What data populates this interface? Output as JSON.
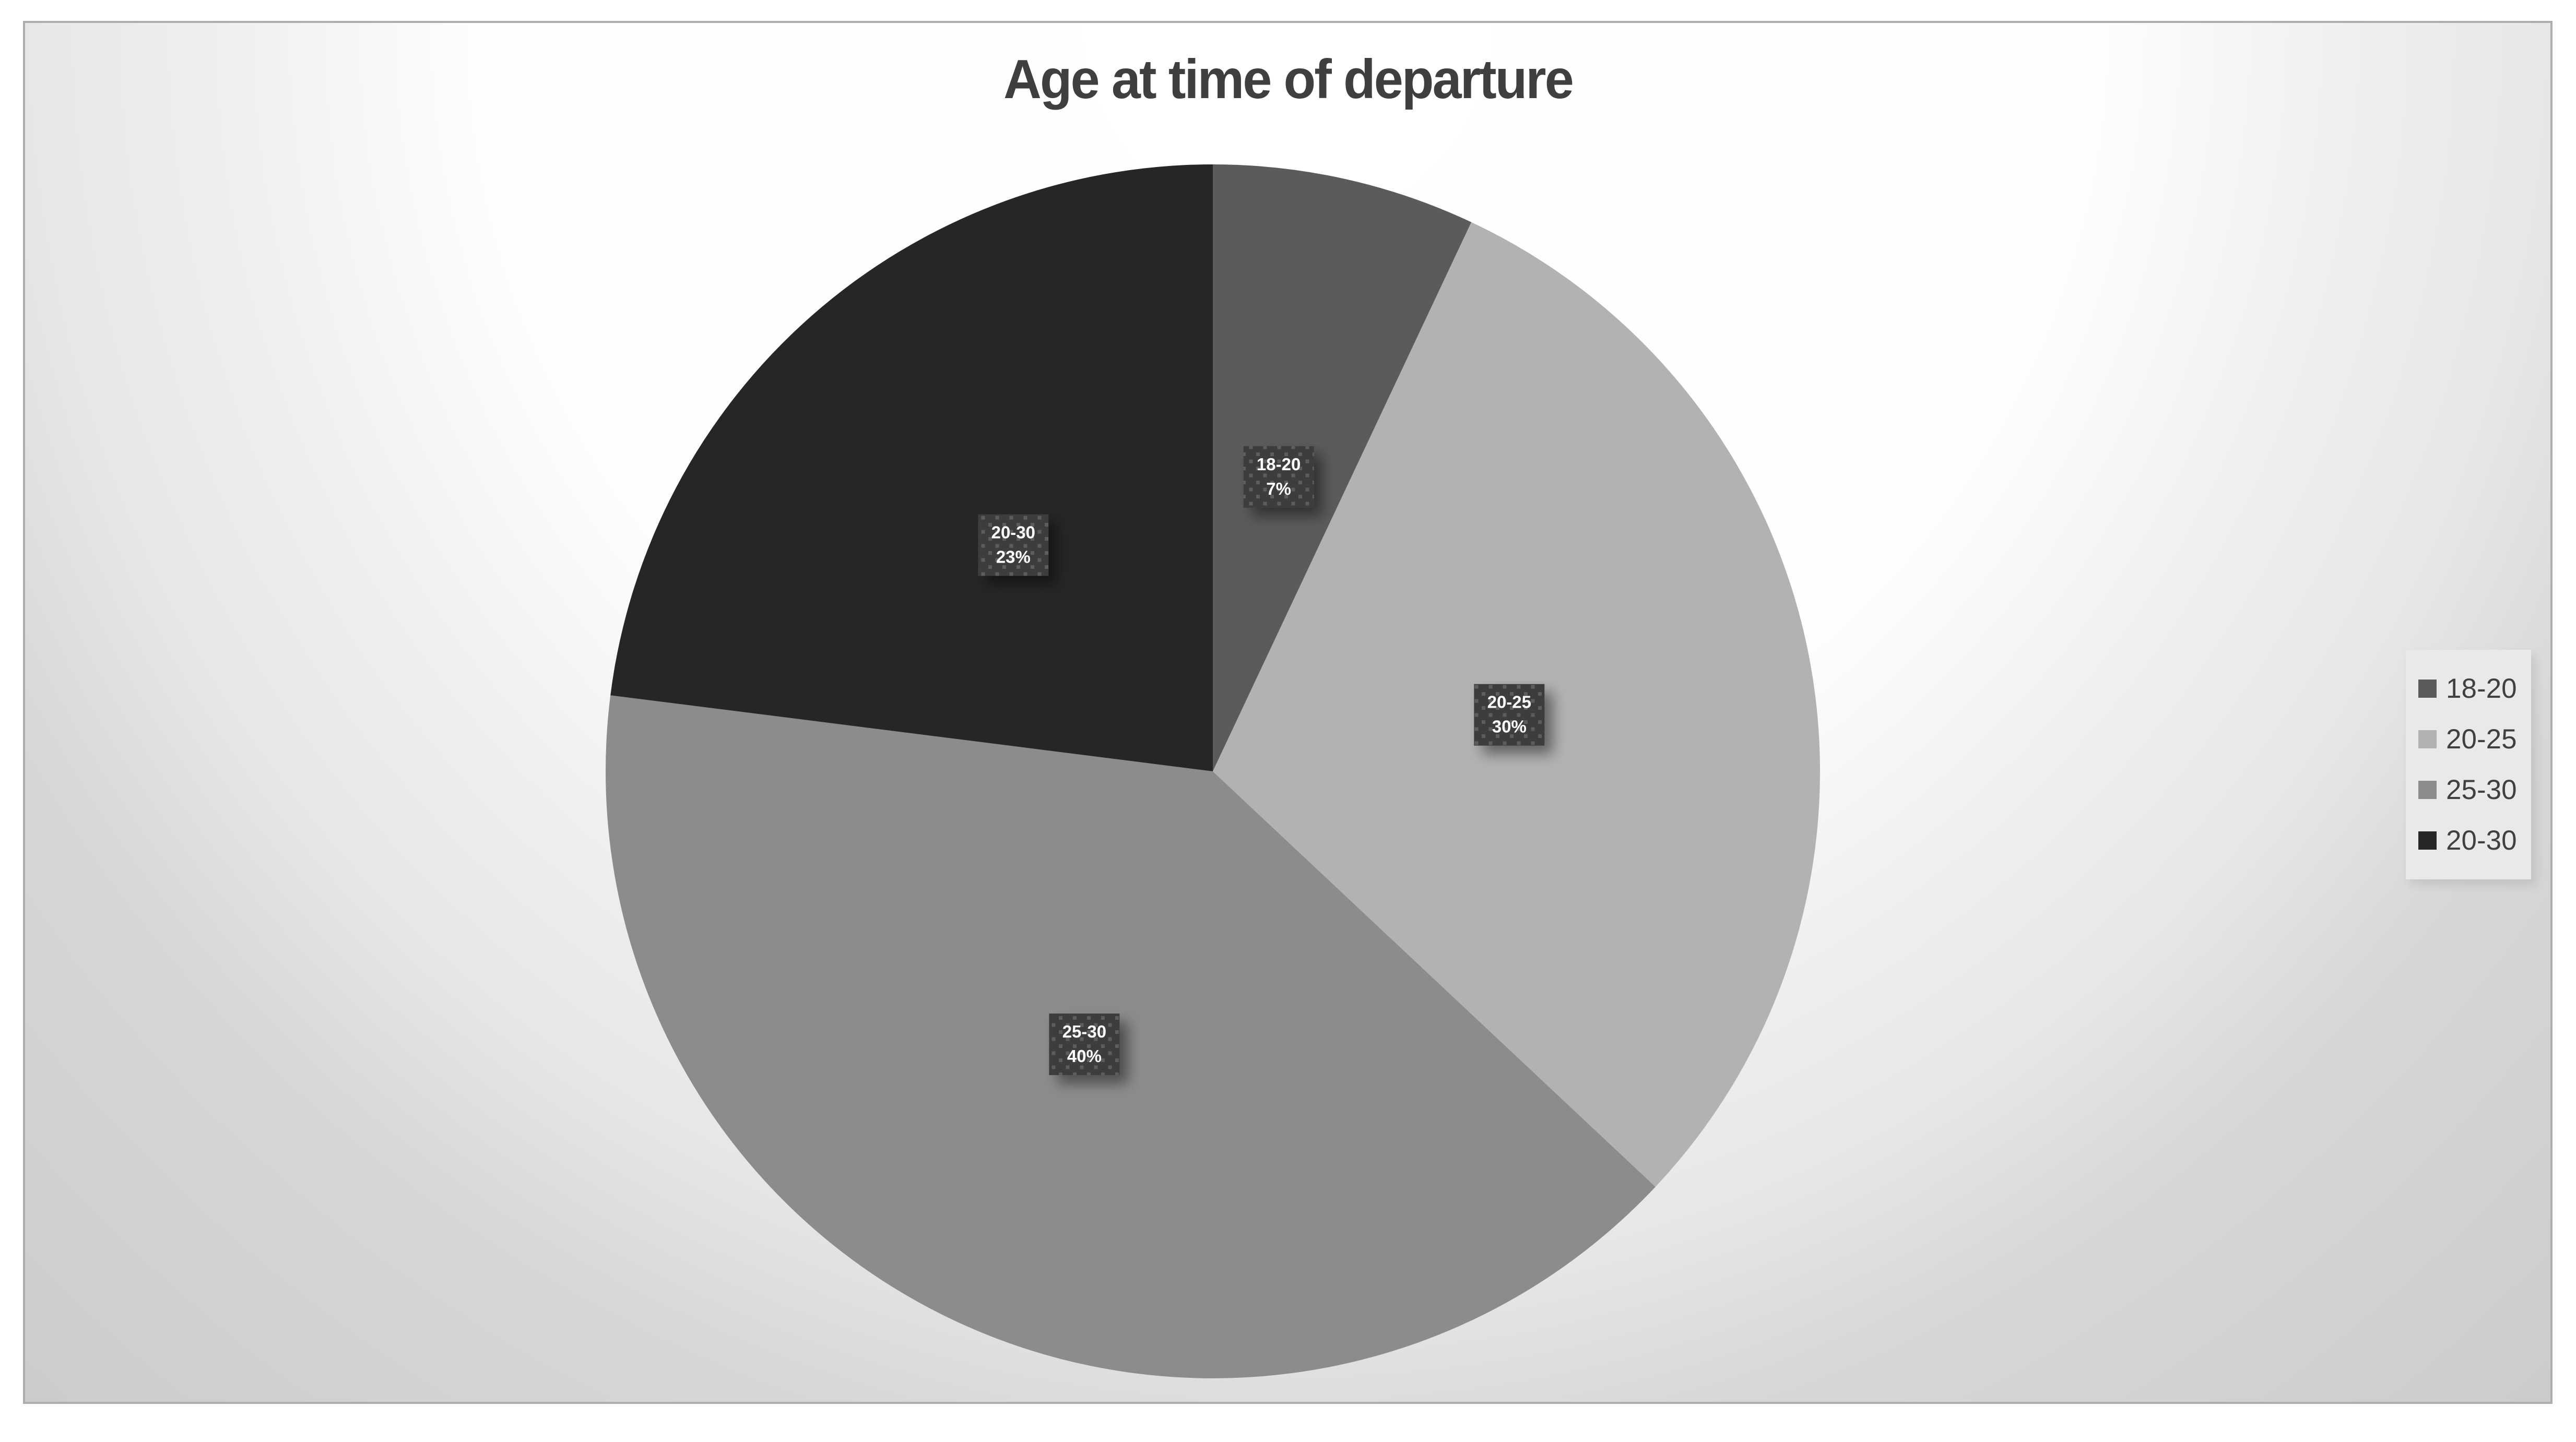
{
  "chart_data": {
    "type": "pie",
    "title": "Age at time of departure",
    "categories": [
      "18-20",
      "20-25",
      "25-30",
      "20-30"
    ],
    "values": [
      7,
      30,
      40,
      23
    ],
    "data_labels": [
      {
        "line1": "18-20",
        "line2": "7%"
      },
      {
        "line1": "20-25",
        "line2": "30%"
      },
      {
        "line1": "25-30",
        "line2": "40%"
      },
      {
        "line1": "20-30",
        "line2": "23%"
      }
    ],
    "legend_entries": [
      "18-20",
      "20-25",
      "25-30",
      "20-30"
    ],
    "legend_position": "right",
    "start_angle_deg": 0,
    "direction": "clockwise",
    "slice_colors": [
      "#5b5b5b",
      "#b2b2b2",
      "#8c8c8c",
      "#262626"
    ]
  },
  "styles": {
    "title_color": "#3f3f3f",
    "legend_text_color": "#404040",
    "legend_background": "#e9e9e9",
    "frame_border_color": "#aeaeae",
    "label_box_background": "#3d3d3d",
    "label_box_dot_color": "#5d5d5d",
    "label_text_color": "#ffffff"
  }
}
